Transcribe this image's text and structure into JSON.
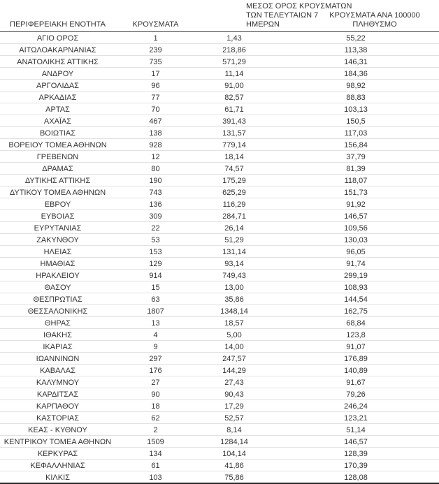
{
  "table": {
    "headers": {
      "region": "ΠΕΡΙΦΕΡΕΙΑΚΗ ΕΝΟΤΗΤΑ",
      "cases": "ΚΡΟΥΣΜΑΤΑ",
      "avg7_lines": [
        "ΜΕΣΟΣ ΟΡΟΣ ΚΡΟΥΣΜΑΤΩΝ",
        "ΤΩΝ ΤΕΛΕΥΤΑΙΩΝ 7",
        "ΗΜΕΡΩΝ"
      ],
      "per100k_lines": [
        "ΚΡΟΥΣΜΑΤΑ ΑΝΑ 100000",
        "ΠΛΗΘΥΣΜΟ"
      ]
    },
    "rows": [
      [
        "ΑΓΙΟ ΟΡΟΣ",
        "1",
        "1,43",
        "55,22"
      ],
      [
        "ΑΙΤΩΛΟΑΚΑΡΝΑΝΙΑΣ",
        "239",
        "218,86",
        "113,38"
      ],
      [
        "ΑΝΑΤΟΛΙΚΗΣ ΑΤΤΙΚΗΣ",
        "735",
        "571,29",
        "146,31"
      ],
      [
        "ΑΝΔΡΟΥ",
        "17",
        "11,14",
        "184,36"
      ],
      [
        "ΑΡΓΟΛΙΔΑΣ",
        "96",
        "91,00",
        "98,92"
      ],
      [
        "ΑΡΚΑΔΙΑΣ",
        "77",
        "82,57",
        "88,83"
      ],
      [
        "ΑΡΤΑΣ",
        "70",
        "61,71",
        "103,13"
      ],
      [
        "ΑΧΑΪΑΣ",
        "467",
        "391,43",
        "150,5"
      ],
      [
        "ΒΟΙΩΤΙΑΣ",
        "138",
        "131,57",
        "117,03"
      ],
      [
        "ΒΟΡΕΙΟΥ ΤΟΜΕΑ ΑΘΗΝΩΝ",
        "928",
        "779,14",
        "156,84"
      ],
      [
        "ΓΡΕΒΕΝΩΝ",
        "12",
        "18,14",
        "37,79"
      ],
      [
        "ΔΡΑΜΑΣ",
        "80",
        "74,57",
        "81,39"
      ],
      [
        "ΔΥΤΙΚΗΣ ΑΤΤΙΚΗΣ",
        "190",
        "175,29",
        "118,07"
      ],
      [
        "ΔΥΤΙΚΟΥ ΤΟΜΕΑ ΑΘΗΝΩΝ",
        "743",
        "625,29",
        "151,73"
      ],
      [
        "ΕΒΡΟΥ",
        "136",
        "116,29",
        "91,92"
      ],
      [
        "ΕΥΒΟΙΑΣ",
        "309",
        "284,71",
        "146,57"
      ],
      [
        "ΕΥΡΥΤΑΝΙΑΣ",
        "22",
        "26,14",
        "109,56"
      ],
      [
        "ΖΑΚΥΝΘΟΥ",
        "53",
        "51,29",
        "130,03"
      ],
      [
        "ΗΛΕΙΑΣ",
        "153",
        "131,14",
        "96,05"
      ],
      [
        "ΗΜΑΘΙΑΣ",
        "129",
        "93,14",
        "91,74"
      ],
      [
        "ΗΡΑΚΛΕΙΟΥ",
        "914",
        "749,43",
        "299,19"
      ],
      [
        "ΘΑΣΟΥ",
        "15",
        "13,00",
        "108,93"
      ],
      [
        "ΘΕΣΠΡΩΤΙΑΣ",
        "63",
        "35,86",
        "144,54"
      ],
      [
        "ΘΕΣΣΑΛΟΝΙΚΗΣ",
        "1807",
        "1348,14",
        "162,75"
      ],
      [
        "ΘΗΡΑΣ",
        "13",
        "18,57",
        "68,84"
      ],
      [
        "ΙΘΑΚΗΣ",
        "4",
        "5,00",
        "123,8"
      ],
      [
        "ΙΚΑΡΙΑΣ",
        "9",
        "14,00",
        "91,07"
      ],
      [
        "ΙΩΑΝΝΙΝΩΝ",
        "297",
        "247,57",
        "176,89"
      ],
      [
        "ΚΑΒΑΛΑΣ",
        "176",
        "144,29",
        "140,89"
      ],
      [
        "ΚΑΛΥΜΝΟΥ",
        "27",
        "27,43",
        "91,67"
      ],
      [
        "ΚΑΡΔΙΤΣΑΣ",
        "90",
        "90,43",
        "79,26"
      ],
      [
        "ΚΑΡΠΑΘΟΥ",
        "18",
        "17,29",
        "246,24"
      ],
      [
        "ΚΑΣΤΟΡΙΑΣ",
        "62",
        "52,57",
        "123,21"
      ],
      [
        "ΚΕΑΣ - ΚΥΘΝΟΥ",
        "2",
        "8,14",
        "51,14"
      ],
      [
        "ΚΕΝΤΡΙΚΟΥ ΤΟΜΕΑ ΑΘΗΝΩΝ",
        "1509",
        "1284,14",
        "146,57"
      ],
      [
        "ΚΕΡΚΥΡΑΣ",
        "134",
        "104,14",
        "128,39"
      ],
      [
        "ΚΕΦΑΛΛΗΝΙΑΣ",
        "61",
        "41,86",
        "170,39"
      ],
      [
        "ΚΙΛΚΙΣ",
        "103",
        "75,86",
        "128,08"
      ]
    ]
  }
}
